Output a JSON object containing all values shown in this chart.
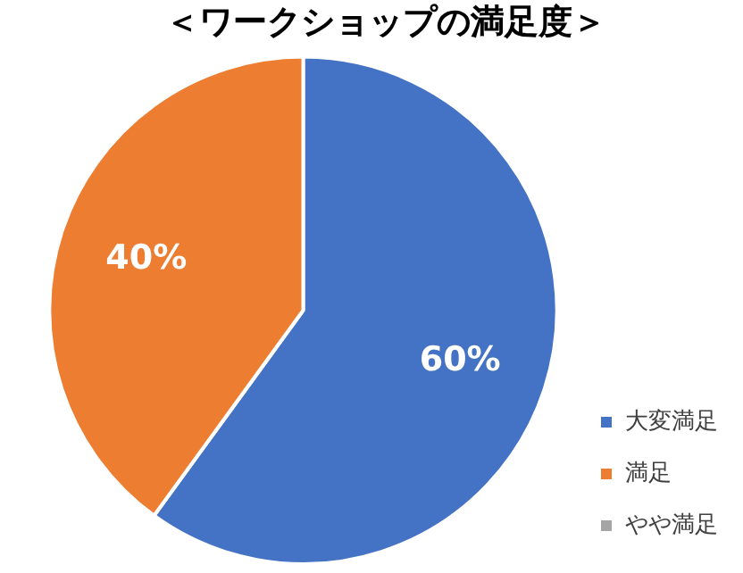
{
  "chart_data": {
    "type": "pie",
    "title": "＜ワークショップの満足度＞",
    "categories": [
      "大変満足",
      "満足",
      "やや満足"
    ],
    "values": [
      60,
      40,
      0
    ],
    "colors": [
      "#4472c4",
      "#ed7d31",
      "#a5a5a5"
    ],
    "value_labels": [
      "60%",
      "40%",
      null
    ],
    "legend": "bottom right"
  }
}
